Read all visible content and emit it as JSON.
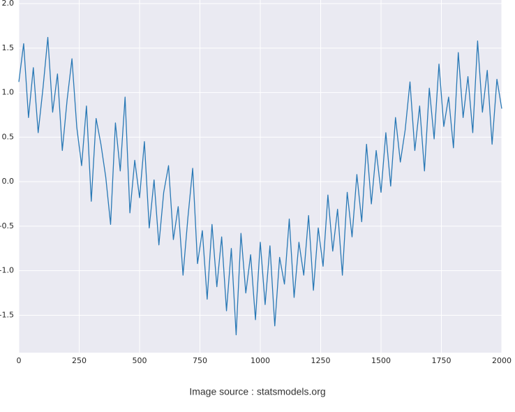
{
  "chart_data": {
    "type": "line",
    "annotation": "Image source : statsmodels.org",
    "x": [
      0,
      20,
      40,
      60,
      80,
      100,
      120,
      140,
      160,
      180,
      200,
      220,
      240,
      260,
      280,
      300,
      320,
      340,
      360,
      380,
      400,
      420,
      440,
      460,
      480,
      500,
      520,
      540,
      560,
      580,
      600,
      620,
      640,
      660,
      680,
      700,
      720,
      740,
      760,
      780,
      800,
      820,
      840,
      860,
      880,
      900,
      920,
      940,
      960,
      980,
      1000,
      1020,
      1040,
      1060,
      1080,
      1100,
      1120,
      1140,
      1160,
      1180,
      1200,
      1220,
      1240,
      1260,
      1280,
      1300,
      1320,
      1340,
      1360,
      1380,
      1400,
      1420,
      1440,
      1460,
      1480,
      1500,
      1520,
      1540,
      1560,
      1580,
      1600,
      1620,
      1640,
      1660,
      1680,
      1700,
      1720,
      1740,
      1760,
      1780,
      1800,
      1820,
      1840,
      1860,
      1880,
      1900,
      1920,
      1940,
      1960,
      1980,
      2000
    ],
    "series": [
      {
        "color": "#2878b5",
        "values": [
          1.12,
          1.55,
          0.72,
          1.28,
          0.55,
          1.05,
          1.62,
          0.78,
          1.21,
          0.35,
          0.92,
          1.38,
          0.61,
          0.18,
          0.85,
          -0.22,
          0.71,
          0.42,
          0.05,
          -0.48,
          0.66,
          0.12,
          0.95,
          -0.35,
          0.24,
          -0.18,
          0.45,
          -0.52,
          0.02,
          -0.71,
          -0.12,
          0.18,
          -0.65,
          -0.28,
          -1.05,
          -0.41,
          0.15,
          -0.92,
          -0.55,
          -1.32,
          -0.48,
          -1.18,
          -0.62,
          -1.45,
          -0.75,
          -1.72,
          -0.58,
          -1.25,
          -0.82,
          -1.55,
          -0.68,
          -1.38,
          -0.72,
          -1.62,
          -0.85,
          -1.15,
          -0.42,
          -1.3,
          -0.68,
          -1.05,
          -0.38,
          -1.22,
          -0.52,
          -0.95,
          -0.15,
          -0.78,
          -0.31,
          -1.05,
          -0.12,
          -0.62,
          0.08,
          -0.45,
          0.42,
          -0.25,
          0.35,
          -0.12,
          0.55,
          -0.05,
          0.72,
          0.22,
          0.58,
          1.12,
          0.35,
          0.85,
          0.12,
          1.05,
          0.48,
          1.32,
          0.62,
          0.95,
          0.38,
          1.45,
          0.72,
          1.18,
          0.55,
          1.58,
          0.78,
          1.25,
          0.42,
          1.15,
          0.82
        ]
      }
    ],
    "xlim": [
      0,
      2000
    ],
    "xticks": [
      0,
      250,
      500,
      750,
      1000,
      1250,
      1500,
      1750,
      2000
    ],
    "ylim": [
      -1.92,
      2.04
    ],
    "yticks": [
      -1.5,
      {
        "value": -1.0,
        "label": "-1.0"
      },
      -0.5,
      {
        "value": 0,
        "label": "0.0"
      },
      0.5,
      {
        "value": 1.0,
        "label": "1.0"
      },
      1.5,
      {
        "value": 2.0,
        "label": "2.0"
      }
    ],
    "grid": true
  }
}
